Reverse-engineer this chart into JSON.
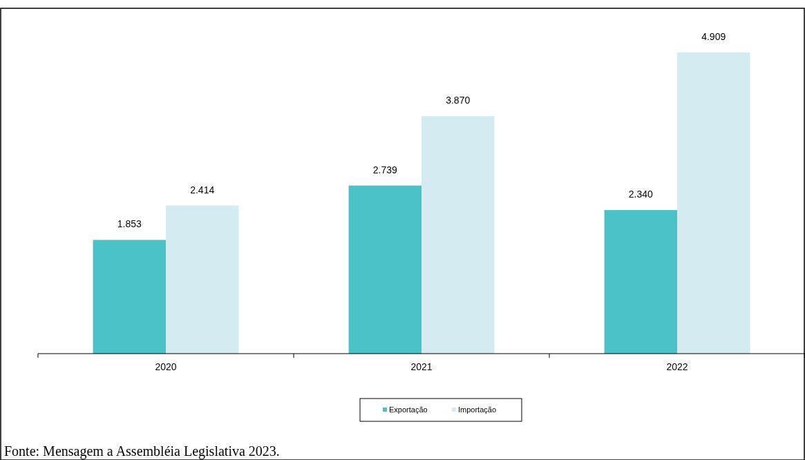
{
  "chart_data": {
    "type": "bar",
    "categories": [
      "2020",
      "2021",
      "2022"
    ],
    "series": [
      {
        "name": "Exportação",
        "color": "#4ac2c7",
        "values": [
          1853,
          2739,
          2340
        ],
        "value_labels": [
          "1.853",
          "2.739",
          "2.340"
        ]
      },
      {
        "name": "Importação",
        "color": "#d3ebf1",
        "values": [
          2414,
          3870,
          4909
        ],
        "value_labels": [
          "2.414",
          "3.870",
          "4.909"
        ]
      }
    ],
    "legend": "bottom",
    "annotations": [
      "Fonte: Mensagem a Assembléia Legislativa 2023."
    ]
  }
}
